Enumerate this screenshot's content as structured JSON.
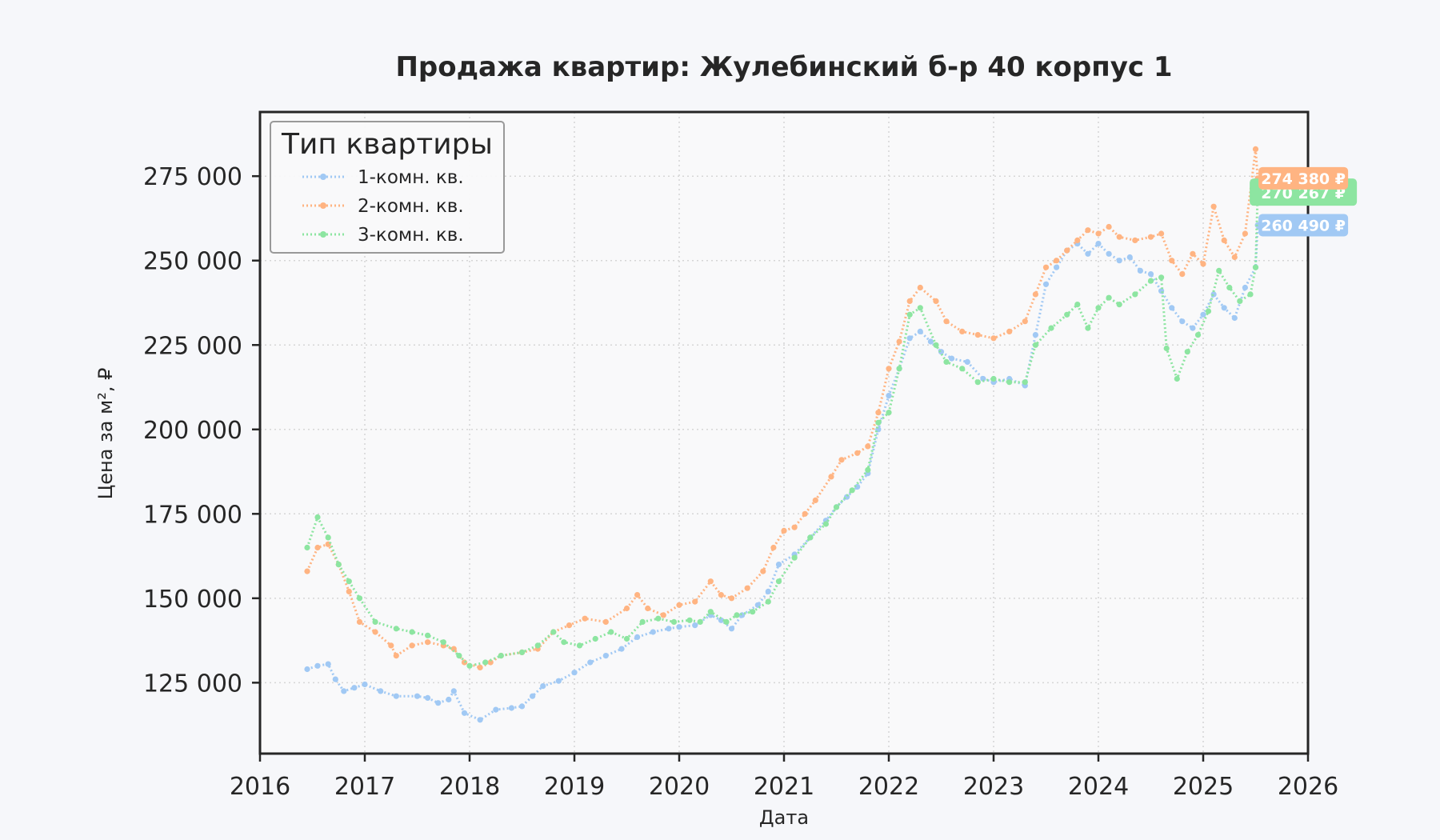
{
  "chart_data": {
    "type": "line",
    "title": "Продажа квартир: Жулебинский б-р 40 корпус 1",
    "xlabel": "Дата",
    "ylabel": "Цена за м², ₽",
    "xlim": [
      2016.0,
      2026.0
    ],
    "ylim": [
      104000,
      294000
    ],
    "x_ticks": [
      2016,
      2017,
      2018,
      2019,
      2020,
      2021,
      2022,
      2023,
      2024,
      2025,
      2026
    ],
    "x_tick_labels": [
      "2016",
      "2017",
      "2018",
      "2019",
      "2020",
      "2021",
      "2022",
      "2023",
      "2024",
      "2025",
      "2026"
    ],
    "y_ticks": [
      125000,
      150000,
      175000,
      200000,
      225000,
      250000,
      275000
    ],
    "y_tick_labels": [
      "125 000",
      "150 000",
      "175 000",
      "200 000",
      "225 000",
      "250 000",
      "275 000"
    ],
    "grid": true,
    "legend": {
      "title": "Тип квартиры",
      "position": "top-left"
    },
    "series": [
      {
        "name": "1-комн. кв.",
        "color": "#a1c9f4",
        "end_label": "260 490 ₽",
        "points": [
          [
            2016.45,
            129000
          ],
          [
            2016.55,
            130000
          ],
          [
            2016.65,
            130500
          ],
          [
            2016.72,
            126000
          ],
          [
            2016.8,
            122500
          ],
          [
            2016.9,
            123500
          ],
          [
            2017.0,
            124500
          ],
          [
            2017.15,
            122500
          ],
          [
            2017.3,
            121000
          ],
          [
            2017.5,
            121000
          ],
          [
            2017.6,
            120500
          ],
          [
            2017.7,
            119000
          ],
          [
            2017.8,
            120000
          ],
          [
            2017.85,
            122500
          ],
          [
            2017.95,
            116000
          ],
          [
            2018.1,
            114000
          ],
          [
            2018.25,
            117000
          ],
          [
            2018.4,
            117500
          ],
          [
            2018.5,
            118000
          ],
          [
            2018.6,
            121000
          ],
          [
            2018.7,
            124000
          ],
          [
            2018.85,
            125500
          ],
          [
            2019.0,
            128000
          ],
          [
            2019.15,
            131000
          ],
          [
            2019.3,
            133000
          ],
          [
            2019.45,
            135000
          ],
          [
            2019.6,
            138500
          ],
          [
            2019.75,
            140000
          ],
          [
            2019.9,
            141000
          ],
          [
            2020.0,
            141500
          ],
          [
            2020.15,
            142000
          ],
          [
            2020.3,
            145000
          ],
          [
            2020.4,
            143500
          ],
          [
            2020.5,
            141000
          ],
          [
            2020.6,
            145000
          ],
          [
            2020.75,
            148000
          ],
          [
            2020.85,
            152000
          ],
          [
            2020.95,
            160000
          ],
          [
            2021.1,
            163000
          ],
          [
            2021.25,
            168000
          ],
          [
            2021.4,
            173000
          ],
          [
            2021.5,
            177000
          ],
          [
            2021.6,
            180000
          ],
          [
            2021.7,
            183000
          ],
          [
            2021.8,
            187000
          ],
          [
            2021.9,
            200000
          ],
          [
            2022.0,
            210000
          ],
          [
            2022.1,
            218000
          ],
          [
            2022.2,
            227000
          ],
          [
            2022.3,
            229000
          ],
          [
            2022.4,
            226000
          ],
          [
            2022.5,
            223000
          ],
          [
            2022.6,
            221000
          ],
          [
            2022.75,
            220000
          ],
          [
            2022.9,
            215000
          ],
          [
            2023.0,
            214000
          ],
          [
            2023.15,
            215000
          ],
          [
            2023.3,
            213000
          ],
          [
            2023.4,
            228000
          ],
          [
            2023.5,
            243000
          ],
          [
            2023.6,
            248000
          ],
          [
            2023.7,
            253000
          ],
          [
            2023.8,
            255000
          ],
          [
            2023.9,
            252000
          ],
          [
            2024.0,
            255000
          ],
          [
            2024.1,
            252000
          ],
          [
            2024.2,
            250000
          ],
          [
            2024.3,
            251000
          ],
          [
            2024.4,
            247000
          ],
          [
            2024.5,
            246000
          ],
          [
            2024.6,
            241000
          ],
          [
            2024.7,
            236000
          ],
          [
            2024.8,
            232000
          ],
          [
            2024.9,
            230000
          ],
          [
            2025.0,
            234000
          ],
          [
            2025.1,
            240000
          ],
          [
            2025.2,
            236000
          ],
          [
            2025.3,
            233000
          ],
          [
            2025.4,
            242000
          ],
          [
            2025.5,
            248000
          ],
          [
            2025.52,
            260490
          ]
        ]
      },
      {
        "name": "2-комн. кв.",
        "color": "#ffb482",
        "end_label": "274 380 ₽",
        "points": [
          [
            2016.45,
            158000
          ],
          [
            2016.55,
            165000
          ],
          [
            2016.65,
            166000
          ],
          [
            2016.75,
            160000
          ],
          [
            2016.85,
            152000
          ],
          [
            2016.95,
            143000
          ],
          [
            2017.1,
            140000
          ],
          [
            2017.25,
            136000
          ],
          [
            2017.3,
            133000
          ],
          [
            2017.45,
            136000
          ],
          [
            2017.6,
            137000
          ],
          [
            2017.75,
            136000
          ],
          [
            2017.85,
            135000
          ],
          [
            2017.95,
            131000
          ],
          [
            2018.1,
            129500
          ],
          [
            2018.2,
            131000
          ],
          [
            2018.3,
            133000
          ],
          [
            2018.5,
            134000
          ],
          [
            2018.65,
            135000
          ],
          [
            2018.8,
            140000
          ],
          [
            2018.95,
            142000
          ],
          [
            2019.1,
            144000
          ],
          [
            2019.3,
            143000
          ],
          [
            2019.5,
            147000
          ],
          [
            2019.6,
            151000
          ],
          [
            2019.7,
            147000
          ],
          [
            2019.85,
            145000
          ],
          [
            2020.0,
            148000
          ],
          [
            2020.15,
            149000
          ],
          [
            2020.3,
            155000
          ],
          [
            2020.4,
            151000
          ],
          [
            2020.5,
            150000
          ],
          [
            2020.65,
            153000
          ],
          [
            2020.8,
            158000
          ],
          [
            2020.9,
            165000
          ],
          [
            2021.0,
            170000
          ],
          [
            2021.1,
            171000
          ],
          [
            2021.2,
            175000
          ],
          [
            2021.3,
            179000
          ],
          [
            2021.45,
            186000
          ],
          [
            2021.55,
            191000
          ],
          [
            2021.7,
            193000
          ],
          [
            2021.8,
            195000
          ],
          [
            2021.9,
            205000
          ],
          [
            2022.0,
            218000
          ],
          [
            2022.1,
            226000
          ],
          [
            2022.2,
            238000
          ],
          [
            2022.3,
            242000
          ],
          [
            2022.45,
            238000
          ],
          [
            2022.55,
            232000
          ],
          [
            2022.7,
            229000
          ],
          [
            2022.85,
            228000
          ],
          [
            2023.0,
            227000
          ],
          [
            2023.15,
            229000
          ],
          [
            2023.3,
            232000
          ],
          [
            2023.4,
            240000
          ],
          [
            2023.5,
            248000
          ],
          [
            2023.6,
            250000
          ],
          [
            2023.7,
            253000
          ],
          [
            2023.8,
            256000
          ],
          [
            2023.9,
            259000
          ],
          [
            2024.0,
            258000
          ],
          [
            2024.1,
            260000
          ],
          [
            2024.2,
            257000
          ],
          [
            2024.35,
            256000
          ],
          [
            2024.5,
            257000
          ],
          [
            2024.6,
            258000
          ],
          [
            2024.7,
            250000
          ],
          [
            2024.8,
            246000
          ],
          [
            2024.9,
            252000
          ],
          [
            2025.0,
            249000
          ],
          [
            2025.1,
            266000
          ],
          [
            2025.2,
            256000
          ],
          [
            2025.3,
            251000
          ],
          [
            2025.4,
            258000
          ],
          [
            2025.5,
            283000
          ],
          [
            2025.52,
            274380
          ]
        ]
      },
      {
        "name": "3-комн. кв.",
        "color": "#8de5a1",
        "end_label": "270 267 ₽",
        "points": [
          [
            2016.45,
            165000
          ],
          [
            2016.55,
            174000
          ],
          [
            2016.65,
            168000
          ],
          [
            2016.75,
            160000
          ],
          [
            2016.85,
            155000
          ],
          [
            2016.95,
            150000
          ],
          [
            2017.1,
            143000
          ],
          [
            2017.3,
            141000
          ],
          [
            2017.45,
            140000
          ],
          [
            2017.6,
            139000
          ],
          [
            2017.75,
            137000
          ],
          [
            2017.9,
            133000
          ],
          [
            2018.0,
            130000
          ],
          [
            2018.15,
            131000
          ],
          [
            2018.3,
            133000
          ],
          [
            2018.5,
            134000
          ],
          [
            2018.65,
            136000
          ],
          [
            2018.8,
            140000
          ],
          [
            2018.9,
            137000
          ],
          [
            2019.05,
            136000
          ],
          [
            2019.2,
            138000
          ],
          [
            2019.35,
            140000
          ],
          [
            2019.5,
            138000
          ],
          [
            2019.65,
            143000
          ],
          [
            2019.8,
            144000
          ],
          [
            2019.95,
            143000
          ],
          [
            2020.1,
            143500
          ],
          [
            2020.2,
            143000
          ],
          [
            2020.3,
            146000
          ],
          [
            2020.45,
            143000
          ],
          [
            2020.55,
            145000
          ],
          [
            2020.7,
            146000
          ],
          [
            2020.85,
            149000
          ],
          [
            2020.95,
            155000
          ],
          [
            2021.1,
            162000
          ],
          [
            2021.25,
            168000
          ],
          [
            2021.4,
            172000
          ],
          [
            2021.5,
            177000
          ],
          [
            2021.65,
            182000
          ],
          [
            2021.8,
            188000
          ],
          [
            2021.9,
            202000
          ],
          [
            2022.0,
            205000
          ],
          [
            2022.1,
            218000
          ],
          [
            2022.2,
            234000
          ],
          [
            2022.3,
            236000
          ],
          [
            2022.45,
            225000
          ],
          [
            2022.55,
            220000
          ],
          [
            2022.7,
            218000
          ],
          [
            2022.85,
            214000
          ],
          [
            2023.0,
            215000
          ],
          [
            2023.15,
            214000
          ],
          [
            2023.3,
            214000
          ],
          [
            2023.4,
            225000
          ],
          [
            2023.55,
            230000
          ],
          [
            2023.7,
            234000
          ],
          [
            2023.8,
            237000
          ],
          [
            2023.9,
            230000
          ],
          [
            2024.0,
            236000
          ],
          [
            2024.1,
            239000
          ],
          [
            2024.2,
            237000
          ],
          [
            2024.35,
            240000
          ],
          [
            2024.5,
            244000
          ],
          [
            2024.6,
            245000
          ],
          [
            2024.65,
            224000
          ],
          [
            2024.75,
            215000
          ],
          [
            2024.85,
            223000
          ],
          [
            2024.95,
            228000
          ],
          [
            2025.05,
            235000
          ],
          [
            2025.15,
            247000
          ],
          [
            2025.25,
            242000
          ],
          [
            2025.35,
            238000
          ],
          [
            2025.45,
            240000
          ],
          [
            2025.5,
            248000
          ],
          [
            2025.52,
            270267
          ]
        ]
      }
    ]
  }
}
